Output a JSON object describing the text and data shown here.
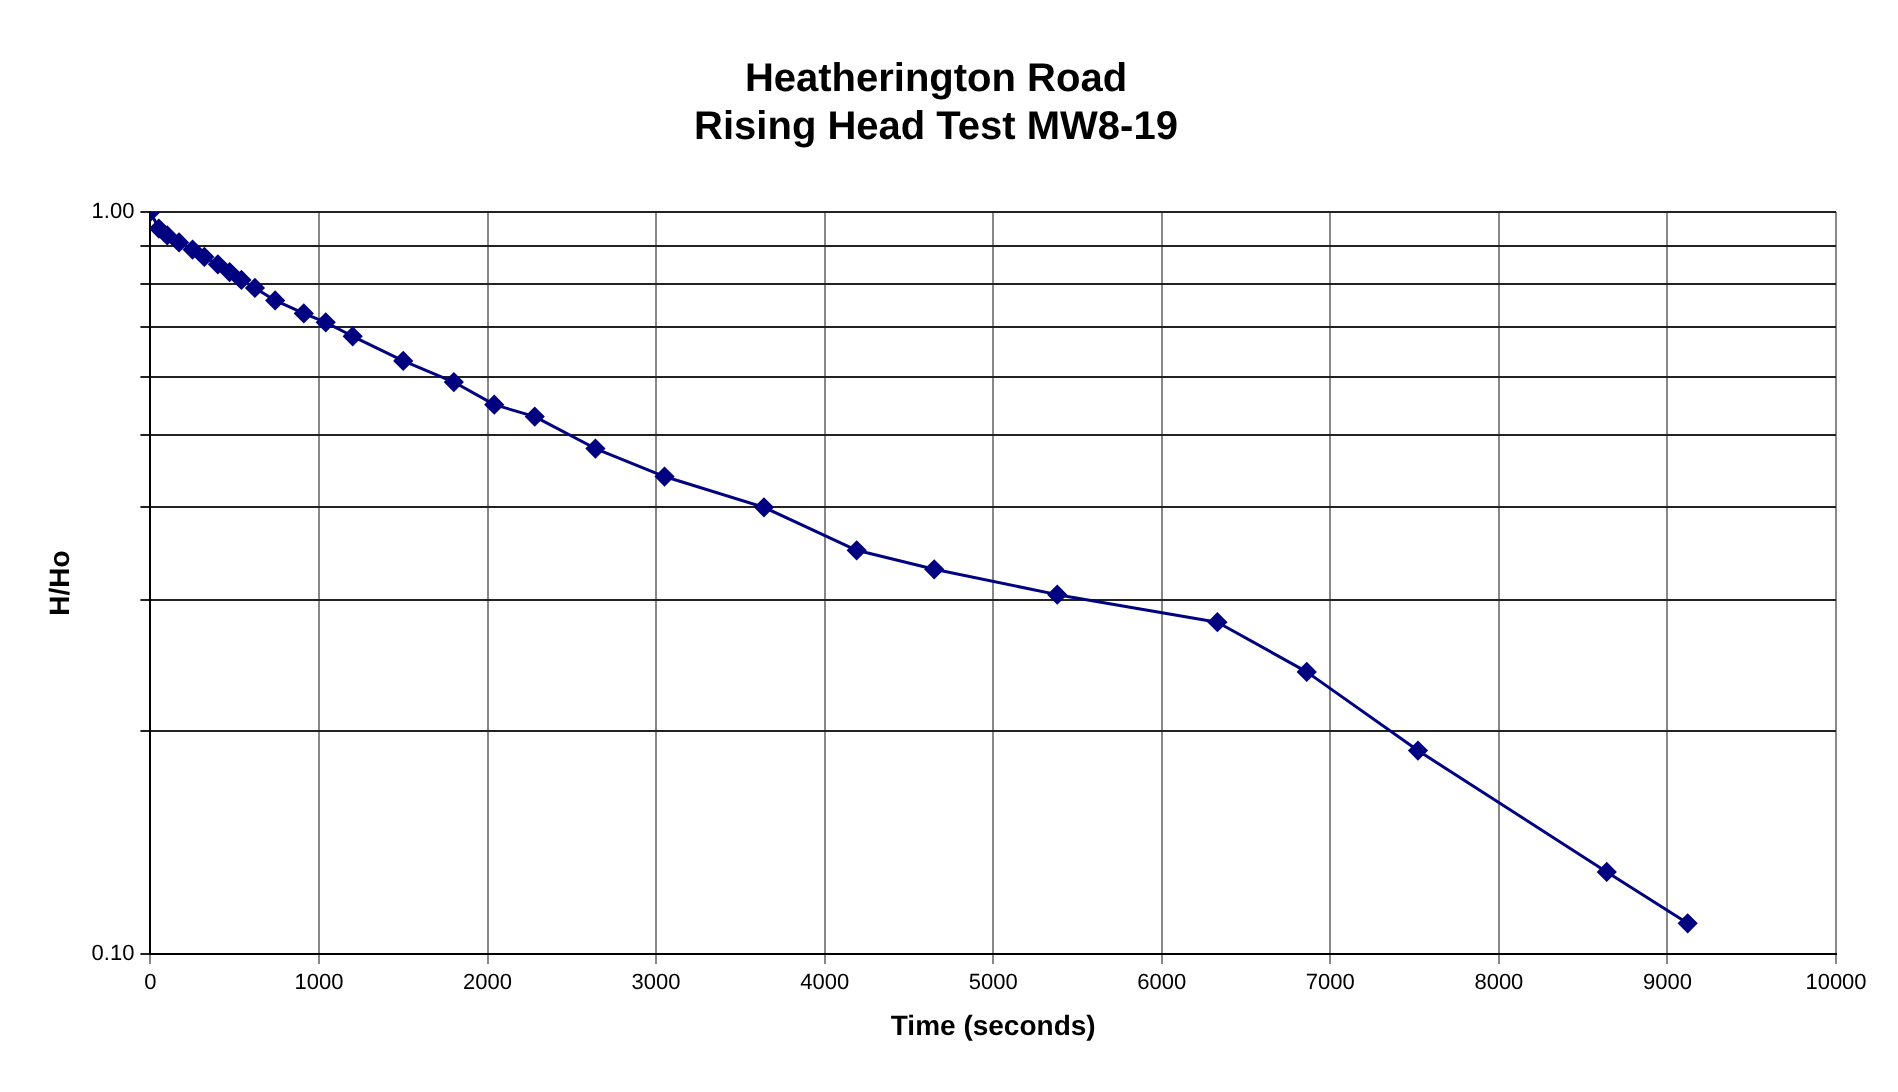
{
  "chart_data": {
    "type": "line",
    "title": "Heatherington Road\nRising Head Test MW8-19",
    "xlabel": "Time (seconds)",
    "ylabel": "H/Ho",
    "x": [
      0,
      50,
      100,
      170,
      250,
      320,
      400,
      470,
      540,
      620,
      740,
      910,
      1040,
      1200,
      1500,
      1800,
      2040,
      2280,
      2640,
      3050,
      3640,
      4190,
      4650,
      5380,
      6330,
      6860,
      7520,
      8640,
      9120
    ],
    "series": [
      {
        "color": "#000080",
        "values": [
          1.0,
          0.95,
          0.93,
          0.91,
          0.89,
          0.87,
          0.85,
          0.83,
          0.81,
          0.79,
          0.76,
          0.73,
          0.71,
          0.68,
          0.63,
          0.59,
          0.55,
          0.53,
          0.48,
          0.44,
          0.4,
          0.35,
          0.33,
          0.305,
          0.28,
          0.24,
          0.188,
          0.129,
          0.11
        ]
      }
    ],
    "xlim": [
      0,
      10000
    ],
    "xticks": [
      0,
      1000,
      2000,
      3000,
      4000,
      5000,
      6000,
      7000,
      8000,
      9000,
      10000
    ],
    "ylim": [
      0.1,
      1
    ],
    "yticks": [
      {
        "value": 0.1,
        "label": "0.10"
      },
      {
        "value": 0.2,
        "label": null
      },
      {
        "value": 0.3,
        "label": null
      },
      {
        "value": 0.4,
        "label": null
      },
      {
        "value": 0.5,
        "label": null
      },
      {
        "value": 0.6,
        "label": null
      },
      {
        "value": 0.7,
        "label": null
      },
      {
        "value": 0.8,
        "label": null
      },
      {
        "value": 0.9,
        "label": null
      },
      {
        "value": 1,
        "label": "1.00"
      }
    ],
    "log": "y",
    "grid": true,
    "legend": false,
    "marker": "diamond",
    "line_style": "solid"
  }
}
